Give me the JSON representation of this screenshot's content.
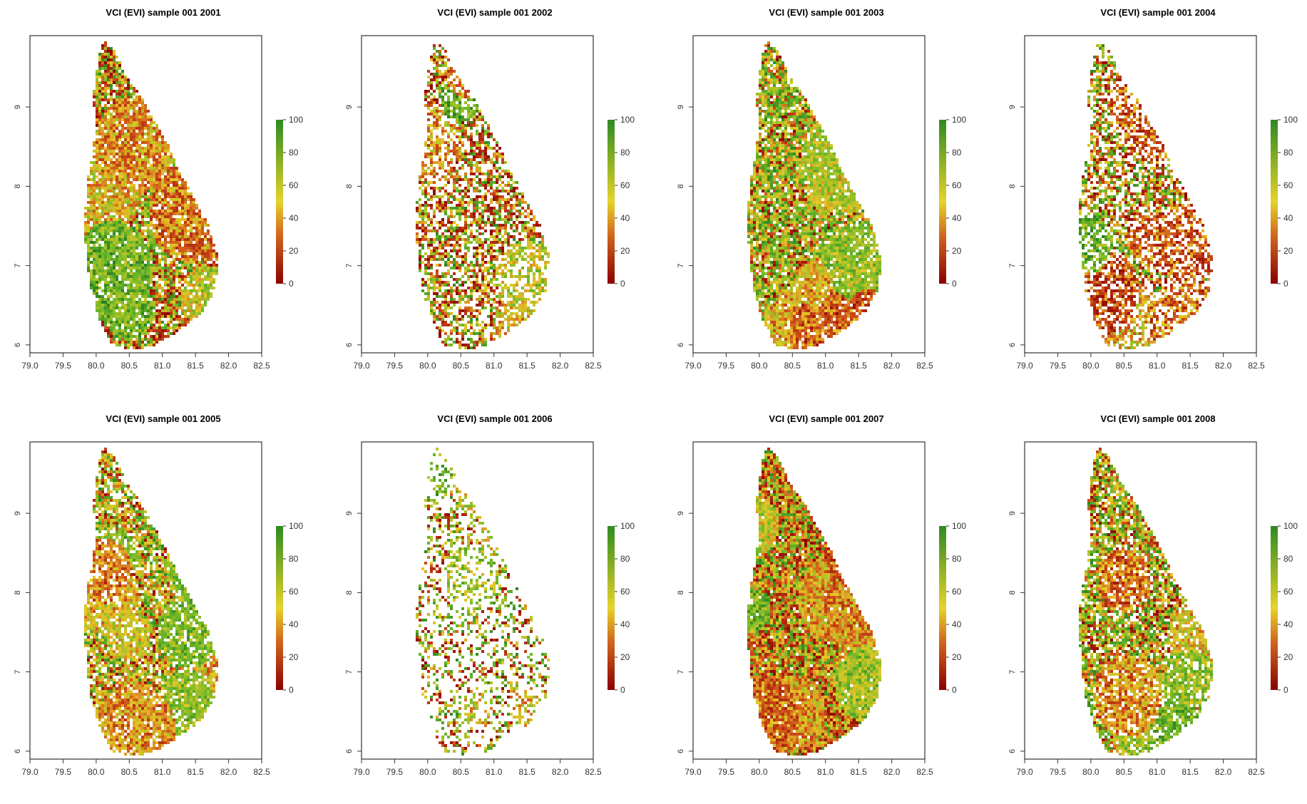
{
  "figure": {
    "panels": [
      {
        "title": "VCI (EVI) sample 001 2001",
        "year": 2001,
        "cover": 0.88,
        "mix": [
          0.3,
          0.28,
          0.22,
          0.2
        ]
      },
      {
        "title": "VCI (EVI) sample 001 2002",
        "year": 2002,
        "cover": 0.62,
        "mix": [
          0.34,
          0.26,
          0.2,
          0.2
        ]
      },
      {
        "title": "VCI (EVI) sample 001 2003",
        "year": 2003,
        "cover": 0.9,
        "mix": [
          0.12,
          0.22,
          0.36,
          0.3
        ]
      },
      {
        "title": "VCI (EVI) sample 001 2004",
        "year": 2004,
        "cover": 0.62,
        "mix": [
          0.3,
          0.24,
          0.22,
          0.24
        ]
      },
      {
        "title": "VCI (EVI) sample 001 2005",
        "year": 2005,
        "cover": 0.82,
        "mix": [
          0.14,
          0.26,
          0.4,
          0.2
        ]
      },
      {
        "title": "VCI (EVI) sample 001 2006",
        "year": 2006,
        "cover": 0.35,
        "mix": [
          0.3,
          0.12,
          0.28,
          0.3
        ]
      },
      {
        "title": "VCI (EVI) sample 001 2007",
        "year": 2007,
        "cover": 0.97,
        "mix": [
          0.28,
          0.32,
          0.22,
          0.18
        ]
      },
      {
        "title": "VCI (EVI) sample 001 2008",
        "year": 2008,
        "cover": 0.82,
        "mix": [
          0.18,
          0.22,
          0.3,
          0.3
        ]
      }
    ],
    "x_ticks": [
      "79.0",
      "79.5",
      "80.0",
      "80.5",
      "81.0",
      "81.5",
      "82.0",
      "82.5"
    ],
    "y_ticks": [
      "6",
      "7",
      "8",
      "9"
    ],
    "colorbar_ticks": [
      "0",
      "20",
      "40",
      "60",
      "80",
      "100"
    ],
    "colors": {
      "low": "#8b0000",
      "mid_low": "#d2691e",
      "mid": "#e6d32a",
      "high": "#2e8b22"
    }
  },
  "chart_data": {
    "type": "heatmap",
    "xlim": [
      79.0,
      82.5
    ],
    "ylim": [
      5.9,
      9.9
    ],
    "zlim": [
      0,
      100
    ],
    "colorbar_ticks": [
      0,
      20,
      40,
      60,
      80,
      100
    ],
    "x_ticks": [
      79.0,
      79.5,
      80.0,
      80.5,
      81.0,
      81.5,
      82.0,
      82.5
    ],
    "y_ticks": [
      6,
      7,
      8,
      9
    ]
  }
}
